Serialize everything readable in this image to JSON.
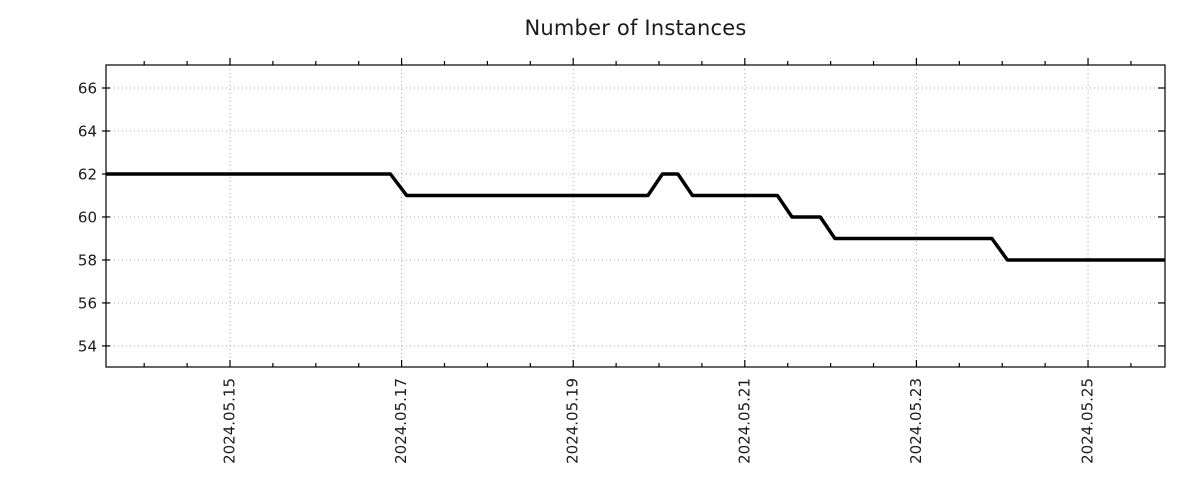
{
  "chart_data": {
    "type": "line",
    "title": "Number of Instances",
    "legend_visible": false,
    "x_axis": {
      "unit": "date (day of May 2024, fractional)",
      "range": [
        13.555,
        25.897
      ],
      "major_ticks": [
        15,
        17,
        19,
        21,
        23,
        25
      ],
      "major_tick_labels": [
        "2024.05.15",
        "2024.05.17",
        "2024.05.19",
        "2024.05.21",
        "2024.05.23",
        "2024.05.25"
      ],
      "minor_tick_interval": 0.5,
      "tick_label_rotation_deg": 90,
      "grid": true
    },
    "y_axis": {
      "range": [
        53.02,
        67.07
      ],
      "major_ticks": [
        54,
        56,
        58,
        60,
        62,
        64,
        66
      ],
      "grid": true
    },
    "series": [
      {
        "name": "Number of Instances",
        "color": "#000000",
        "line_width": 3.5,
        "points": [
          [
            13.56,
            62
          ],
          [
            16.87,
            62
          ],
          [
            17.06,
            61
          ],
          [
            19.87,
            61
          ],
          [
            20.04,
            62
          ],
          [
            20.22,
            62
          ],
          [
            20.39,
            61
          ],
          [
            21.38,
            61
          ],
          [
            21.55,
            60
          ],
          [
            21.88,
            60
          ],
          [
            22.05,
            59
          ],
          [
            23.88,
            59
          ],
          [
            24.06,
            58
          ],
          [
            25.9,
            58
          ]
        ]
      }
    ],
    "styles": {
      "background": "#ffffff",
      "grid_color": "#a9a9a9",
      "grid_style": "dotted",
      "axis_color": "#000000",
      "text_color": "#1a1a1a"
    }
  }
}
